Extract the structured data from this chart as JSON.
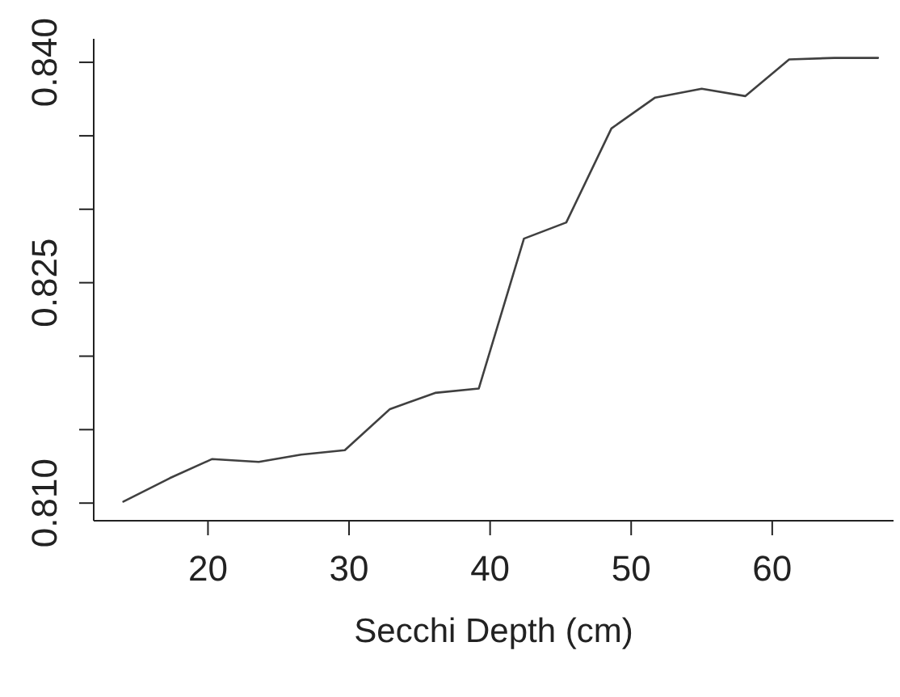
{
  "chart_data": {
    "type": "line",
    "xlabel": "Secchi Depth (cm)",
    "x": [
      14.0,
      17.3,
      20.3,
      23.6,
      26.6,
      29.7,
      32.9,
      36.1,
      39.2,
      42.4,
      45.4,
      48.6,
      51.7,
      55.0,
      58.1,
      61.2,
      64.4,
      67.5
    ],
    "series": [
      {
        "color": "#404040",
        "values": [
          0.8101,
          0.8117,
          0.813,
          0.8128,
          0.8133,
          0.8136,
          0.8164,
          0.8175,
          0.8178,
          0.828,
          0.8291,
          0.8355,
          0.8376,
          0.8382,
          0.8377,
          0.8402,
          0.8403,
          0.8403
        ]
      }
    ],
    "xlim": [
      11.9,
      68.6
    ],
    "ylim": [
      0.8088,
      0.8416
    ],
    "xticks": [
      20,
      30,
      40,
      50,
      60
    ],
    "yticks": [
      {
        "value": 0.81,
        "label": "0.810"
      },
      {
        "value": 0.815,
        "label": null
      },
      {
        "value": 0.82,
        "label": null
      },
      0.825,
      {
        "value": 0.83,
        "label": null
      },
      {
        "value": 0.835,
        "label": null
      },
      {
        "value": 0.84,
        "label": "0.840"
      }
    ],
    "grid": false,
    "legend": false,
    "marker": "none",
    "line_style": "solid"
  }
}
